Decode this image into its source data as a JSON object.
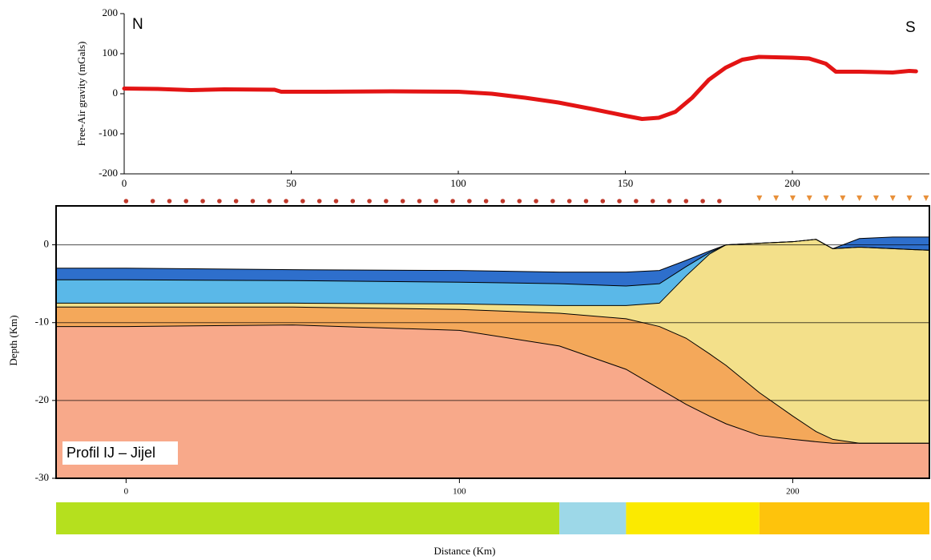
{
  "chart_data": [
    {
      "type": "line",
      "ylabel": "Free-Air gravity (mGals)",
      "annotations": [
        "N",
        "S"
      ],
      "x": [
        0,
        10,
        20,
        30,
        45,
        47,
        60,
        80,
        100,
        110,
        120,
        130,
        140,
        150,
        155,
        160,
        165,
        170,
        175,
        180,
        185,
        190,
        200,
        205,
        210,
        213,
        220,
        230,
        235,
        237
      ],
      "series": [
        {
          "color": "#e31414",
          "values": [
            13,
            12,
            9,
            11,
            10,
            5,
            5,
            6,
            5,
            0,
            -10,
            -22,
            -38,
            -55,
            -63,
            -60,
            -45,
            -10,
            35,
            65,
            85,
            92,
            90,
            88,
            75,
            55,
            55,
            53,
            57,
            56
          ]
        }
      ],
      "xlim": [
        0,
        241
      ],
      "xticks": [
        0,
        50,
        100,
        150,
        200
      ],
      "ylim": [
        -200,
        200
      ],
      "yticks": [
        -200,
        -100,
        0,
        100,
        200
      ]
    },
    {
      "type": "area",
      "ylabel": "Depth (Km)",
      "xlabel": "Distance (Km)",
      "annotations": [
        "Profil IJ – Jijel"
      ],
      "x": [
        -21,
        0,
        50,
        100,
        130,
        150,
        160,
        168,
        175,
        180,
        190,
        200,
        207,
        212,
        220,
        230,
        241
      ],
      "series": [
        {
          "color": "#2e6fcc",
          "values": [
            -3,
            -3,
            -3.2,
            -3.3,
            -3.5,
            -3.5,
            -3.3,
            -2,
            -0.8,
            0,
            0.2,
            0.4,
            0.7,
            -0.5,
            0.8,
            1,
            1
          ]
        },
        {
          "color": "#5ab8e8",
          "values": [
            -4.5,
            -4.5,
            -4.6,
            -4.8,
            -5,
            -5.3,
            -5,
            -2.8,
            -1,
            0,
            0.2,
            0.4,
            0.7,
            -0.5,
            -0.3,
            -0.5,
            -0.7
          ]
        },
        {
          "color": "#f3e08a",
          "values": [
            -7.5,
            -7.5,
            -7.5,
            -7.6,
            -7.8,
            -7.8,
            -7.5,
            -4,
            -1.2,
            0,
            0.2,
            0.4,
            0.7,
            -0.5,
            -0.3,
            -0.5,
            -0.7
          ]
        },
        {
          "color": "#f4a85a",
          "values": [
            -8,
            -8,
            -8,
            -8.3,
            -8.8,
            -9.5,
            -10.5,
            -12,
            -14,
            -15.5,
            -19,
            -22,
            -24,
            -25,
            -25.5,
            -25.5,
            -25.5
          ]
        },
        {
          "color": "#f8a98a",
          "values": [
            -10.5,
            -10.5,
            -10.3,
            -11,
            -13,
            -16,
            -18.5,
            -20.5,
            -22,
            -23,
            -24.5,
            -25,
            -25.3,
            -25.5,
            -25.5,
            -25.5,
            -25.5
          ]
        }
      ],
      "stations": [
        {
          "color": "#c0392b",
          "marker": "circle",
          "x": [
            0,
            8,
            13,
            18,
            23,
            28,
            33,
            38,
            43,
            48,
            53,
            58,
            63,
            68,
            73,
            78,
            83,
            88,
            93,
            98,
            103,
            108,
            113,
            118,
            123,
            128,
            133,
            138,
            143,
            148,
            153,
            158,
            163,
            168,
            173,
            178
          ]
        },
        {
          "color": "#e8903a",
          "marker": "triangle",
          "x": [
            190,
            195,
            200,
            205,
            210,
            215,
            220,
            225,
            230,
            235,
            240
          ]
        }
      ],
      "zones": [
        {
          "from": -21,
          "to": 130,
          "color": "#b5e01e"
        },
        {
          "from": 130,
          "to": 150,
          "color": "#9dd8e8"
        },
        {
          "from": 150,
          "to": 190,
          "color": "#fbea00"
        },
        {
          "from": 190,
          "to": 241,
          "color": "#fec30c"
        }
      ],
      "xlim": [
        -21,
        241
      ],
      "xticks": [
        0,
        100,
        200
      ],
      "ylim": [
        -30,
        5
      ],
      "yticks": [
        -30,
        -20,
        -10,
        0
      ],
      "grid": true
    }
  ]
}
